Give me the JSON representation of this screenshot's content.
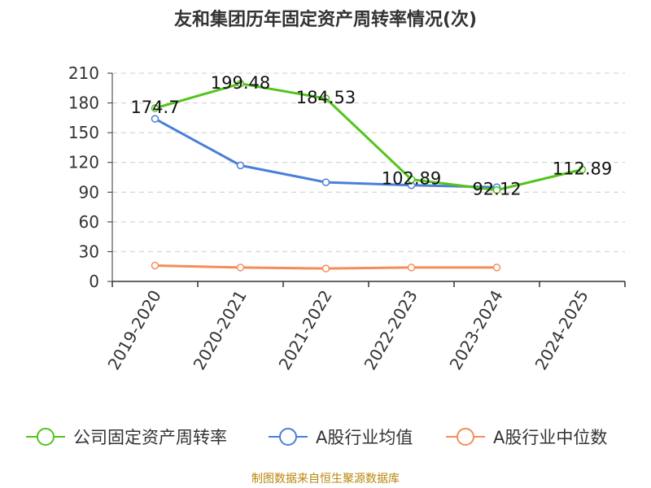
{
  "title": "友和集团历年固定资产周转率情况(次)",
  "footer": "制图数据来自恒生聚源数据库",
  "chart_data": {
    "type": "line",
    "title": "友和集团历年固定资产周转率情况(次)",
    "categories": [
      "2019-2020",
      "2020-2021",
      "2021-2022",
      "2022-2023",
      "2023-2024",
      "2024-2025"
    ],
    "ylim": [
      0,
      210
    ],
    "yticks": [
      0,
      30,
      60,
      90,
      120,
      150,
      180,
      210
    ],
    "grid": true,
    "legend_position": "bottom",
    "series": [
      {
        "name": "公司固定资产周转率",
        "color": "#52c41a",
        "values": [
          174.7,
          199.48,
          184.53,
          102.89,
          92.12,
          112.89
        ],
        "labels": [
          "174.7",
          "199.48",
          "184.53",
          "102.89",
          "92.12",
          "112.89"
        ]
      },
      {
        "name": "A股行业均值",
        "color": "#4a7fd9",
        "values": [
          164,
          117,
          100,
          97,
          95,
          null
        ]
      },
      {
        "name": "A股行业中位数",
        "color": "#f58d5a",
        "values": [
          16,
          14,
          13,
          14,
          14,
          null
        ]
      }
    ]
  }
}
